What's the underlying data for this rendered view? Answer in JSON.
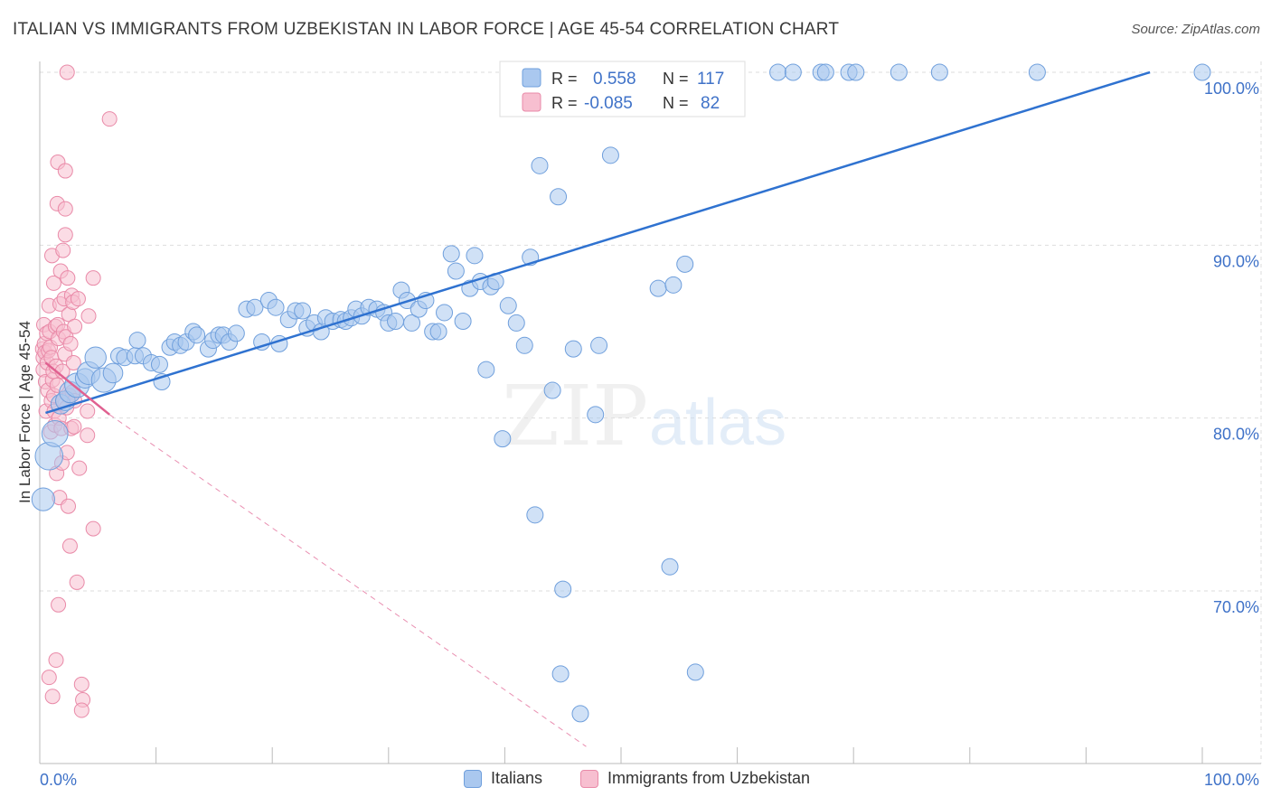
{
  "header": {
    "title": "ITALIAN VS IMMIGRANTS FROM UZBEKISTAN IN LABOR FORCE | AGE 45-54 CORRELATION CHART",
    "source": "Source: ZipAtlas.com"
  },
  "watermark": {
    "part1": "ZIP",
    "part2": "atlas"
  },
  "colors": {
    "italians_fill": "#aac8ef",
    "italians_stroke": "#6f9fdc",
    "italians_line": "#2f72d0",
    "uzbek_fill": "#f7bfd0",
    "uzbek_stroke": "#e98aa8",
    "uzbek_line": "#e06090",
    "value_text": "#3f72c8",
    "grid": "#dddddd"
  },
  "legend": {
    "italians": {
      "r_label": "R =",
      "r_value": "0.558",
      "n_label": "N =",
      "n_value": "117"
    },
    "uzbek": {
      "r_label": "R =",
      "r_value": "-0.085",
      "n_label": "N =",
      "n_value": "82"
    }
  },
  "bottom_legend": {
    "italians": "Italians",
    "uzbek": "Immigrants from Uzbekistan"
  },
  "chart_data": {
    "type": "scatter",
    "title": "ITALIAN VS IMMIGRANTS FROM UZBEKISTAN IN LABOR FORCE | AGE 45-54 CORRELATION CHART",
    "xlabel": "",
    "ylabel": "In Labor Force | Age 45-54",
    "x_ticks": [
      "0.0%",
      "100.0%"
    ],
    "y_ticks": [
      {
        "value": 70,
        "label": "70.0%"
      },
      {
        "value": 80,
        "label": "80.0%"
      },
      {
        "value": 90,
        "label": "90.0%"
      },
      {
        "value": 100,
        "label": "100.0%"
      }
    ],
    "xlim": [
      0,
      100
    ],
    "ylim": [
      61.0,
      101.0
    ],
    "grid": true,
    "legend_position": "top-center",
    "series": [
      {
        "name": "Italians",
        "r": 0.558,
        "n": 117,
        "trend": [
          [
            0.5,
            80.3
          ],
          [
            95.5,
            100.0
          ]
        ],
        "points": [
          [
            0.3,
            75.3,
            1.4
          ],
          [
            0.8,
            77.8,
            1.7
          ],
          [
            1.3,
            79.1,
            1.6
          ],
          [
            1.8,
            80.8,
            1.2
          ],
          [
            2.2,
            81.0,
            1.2
          ],
          [
            2.6,
            81.5,
            1.3
          ],
          [
            3.2,
            81.9,
            1.5
          ],
          [
            3.9,
            82.3,
            1.2
          ],
          [
            4.2,
            82.6,
            1.4
          ],
          [
            4.8,
            83.5,
            1.3
          ],
          [
            5.5,
            82.2,
            1.5
          ],
          [
            6.3,
            82.6,
            1.2
          ],
          [
            6.8,
            83.6,
            1.0
          ],
          [
            7.3,
            83.5,
            1.0
          ],
          [
            8.2,
            83.6,
            1.0
          ],
          [
            8.4,
            84.5,
            1.0
          ],
          [
            8.9,
            83.6,
            1.0
          ],
          [
            9.6,
            83.2,
            1.0
          ],
          [
            10.3,
            83.1,
            1.0
          ],
          [
            10.5,
            82.1,
            1.0
          ],
          [
            11.2,
            84.1,
            1.0
          ],
          [
            11.6,
            84.4,
            1.0
          ],
          [
            12.1,
            84.2,
            1.0
          ],
          [
            12.6,
            84.4,
            1.0
          ],
          [
            13.2,
            85.0,
            1.0
          ],
          [
            13.5,
            84.8,
            1.0
          ],
          [
            14.5,
            84.0,
            1.0
          ],
          [
            14.9,
            84.5,
            1.0
          ],
          [
            15.4,
            84.8,
            1.0
          ],
          [
            15.8,
            84.8,
            1.0
          ],
          [
            16.3,
            84.4,
            1.0
          ],
          [
            16.9,
            84.9,
            1.0
          ],
          [
            17.8,
            86.3,
            1.0
          ],
          [
            18.5,
            86.4,
            1.0
          ],
          [
            19.1,
            84.4,
            1.0
          ],
          [
            19.7,
            86.8,
            1.0
          ],
          [
            20.3,
            86.4,
            1.0
          ],
          [
            20.6,
            84.3,
            1.0
          ],
          [
            21.4,
            85.7,
            1.0
          ],
          [
            22.0,
            86.2,
            1.0
          ],
          [
            22.6,
            86.2,
            1.0
          ],
          [
            23.0,
            85.2,
            1.0
          ],
          [
            23.6,
            85.5,
            1.0
          ],
          [
            24.2,
            85.0,
            1.0
          ],
          [
            24.6,
            85.8,
            1.0
          ],
          [
            25.2,
            85.6,
            1.0
          ],
          [
            25.9,
            85.7,
            1.0
          ],
          [
            26.3,
            85.6,
            1.0
          ],
          [
            26.8,
            85.8,
            1.0
          ],
          [
            27.2,
            86.3,
            1.0
          ],
          [
            27.7,
            85.9,
            1.0
          ],
          [
            28.3,
            86.4,
            1.0
          ],
          [
            29.0,
            86.3,
            1.0
          ],
          [
            29.6,
            86.1,
            1.0
          ],
          [
            30.0,
            85.5,
            1.0
          ],
          [
            30.6,
            85.6,
            1.0
          ],
          [
            31.1,
            87.4,
            1.0
          ],
          [
            31.6,
            86.8,
            1.0
          ],
          [
            32.0,
            85.5,
            1.0
          ],
          [
            32.6,
            86.3,
            1.0
          ],
          [
            33.2,
            86.8,
            1.0
          ],
          [
            33.8,
            85.0,
            1.0
          ],
          [
            34.3,
            85.0,
            1.0
          ],
          [
            34.8,
            86.1,
            1.0
          ],
          [
            35.4,
            89.5,
            1.0
          ],
          [
            35.8,
            88.5,
            1.0
          ],
          [
            36.4,
            85.6,
            1.0
          ],
          [
            37.0,
            87.5,
            1.0
          ],
          [
            37.4,
            89.4,
            1.0
          ],
          [
            37.9,
            87.9,
            1.0
          ],
          [
            38.4,
            82.8,
            1.0
          ],
          [
            38.8,
            87.6,
            1.0
          ],
          [
            39.2,
            87.9,
            1.0
          ],
          [
            39.8,
            78.8,
            1.0
          ],
          [
            40.3,
            86.5,
            1.0
          ],
          [
            41.0,
            85.5,
            1.0
          ],
          [
            41.7,
            84.2,
            1.0
          ],
          [
            42.2,
            89.3,
            1.0
          ],
          [
            42.6,
            74.4,
            1.0
          ],
          [
            43.0,
            94.6,
            1.0
          ],
          [
            44.1,
            81.6,
            1.0
          ],
          [
            44.6,
            92.8,
            1.0
          ],
          [
            45.0,
            70.1,
            1.0
          ],
          [
            44.8,
            65.2,
            1.0
          ],
          [
            45.9,
            84.0,
            1.0
          ],
          [
            46.5,
            62.9,
            1.0
          ],
          [
            46.9,
            100.0,
            1.0
          ],
          [
            47.8,
            80.2,
            1.0
          ],
          [
            48.1,
            84.2,
            1.0
          ],
          [
            49.1,
            95.2,
            1.0
          ],
          [
            50.1,
            100.0,
            1.0
          ],
          [
            51.8,
            100.0,
            1.0
          ],
          [
            53.2,
            87.5,
            1.0
          ],
          [
            54.2,
            71.4,
            1.0
          ],
          [
            54.5,
            87.7,
            1.0
          ],
          [
            55.5,
            88.9,
            1.0
          ],
          [
            55.6,
            100.0,
            1.0
          ],
          [
            56.4,
            65.3,
            1.0
          ],
          [
            56.8,
            100.0,
            1.0
          ],
          [
            57.4,
            100.0,
            1.0
          ],
          [
            58.3,
            100.0,
            1.0
          ],
          [
            63.5,
            100.0,
            1.0
          ],
          [
            64.8,
            100.0,
            1.0
          ],
          [
            67.2,
            100.0,
            1.0
          ],
          [
            67.6,
            100.0,
            1.0
          ],
          [
            69.6,
            100.0,
            1.0
          ],
          [
            70.2,
            100.0,
            1.0
          ],
          [
            73.9,
            100.0,
            1.0
          ],
          [
            77.4,
            100.0,
            1.0
          ],
          [
            85.8,
            100.0,
            1.0
          ],
          [
            100.0,
            100.0,
            1.0
          ]
        ]
      },
      {
        "name": "Immigrants from Uzbekistan",
        "r": -0.085,
        "n": 82,
        "trend": [
          [
            0.5,
            83.2
          ],
          [
            6.0,
            80.2
          ]
        ],
        "trend_ext": [
          [
            6.0,
            80.2
          ],
          [
            47.0,
            61.0
          ]
        ],
        "points": [
          [
            0.25,
            84.0
          ],
          [
            0.3,
            83.5
          ],
          [
            0.3,
            82.8
          ],
          [
            0.35,
            85.4
          ],
          [
            0.4,
            84.3
          ],
          [
            0.45,
            83.8
          ],
          [
            0.5,
            82.1
          ],
          [
            0.55,
            80.4
          ],
          [
            0.6,
            84.9
          ],
          [
            0.65,
            83.2
          ],
          [
            0.7,
            81.6
          ],
          [
            0.75,
            83.9
          ],
          [
            0.8,
            86.5
          ],
          [
            0.85,
            85.0
          ],
          [
            0.9,
            84.1
          ],
          [
            0.95,
            79.2
          ],
          [
            1.0,
            81.0
          ],
          [
            1.0,
            83.5
          ],
          [
            1.05,
            89.4
          ],
          [
            1.1,
            82.2
          ],
          [
            1.15,
            82.7
          ],
          [
            1.2,
            81.3
          ],
          [
            1.2,
            87.8
          ],
          [
            1.25,
            80.4
          ],
          [
            1.3,
            79.6
          ],
          [
            1.35,
            85.3
          ],
          [
            1.4,
            83.0
          ],
          [
            1.45,
            76.8
          ],
          [
            1.5,
            81.9
          ],
          [
            1.5,
            92.4
          ],
          [
            1.55,
            85.4
          ],
          [
            1.6,
            84.6
          ],
          [
            1.65,
            80.0
          ],
          [
            1.7,
            75.4
          ],
          [
            1.75,
            86.6
          ],
          [
            1.8,
            88.5
          ],
          [
            1.85,
            79.4
          ],
          [
            1.9,
            77.4
          ],
          [
            1.95,
            82.7
          ],
          [
            2.0,
            89.7
          ],
          [
            2.0,
            81.0
          ],
          [
            2.05,
            85.0
          ],
          [
            2.1,
            86.9
          ],
          [
            2.15,
            83.7
          ],
          [
            2.2,
            90.6
          ],
          [
            2.25,
            84.7
          ],
          [
            2.3,
            80.6
          ],
          [
            2.35,
            78.0
          ],
          [
            2.4,
            88.1
          ],
          [
            2.45,
            74.9
          ],
          [
            2.5,
            86.0
          ],
          [
            2.55,
            81.3
          ],
          [
            2.6,
            72.6
          ],
          [
            2.65,
            84.3
          ],
          [
            2.7,
            79.4
          ],
          [
            2.75,
            87.1
          ],
          [
            2.8,
            81.5
          ],
          [
            2.85,
            86.7
          ],
          [
            2.9,
            83.2
          ],
          [
            2.95,
            79.5
          ],
          [
            3.0,
            85.3
          ],
          [
            3.0,
            81.0
          ],
          [
            1.55,
            94.8
          ],
          [
            2.2,
            94.3
          ],
          [
            2.2,
            92.1
          ],
          [
            2.35,
            100.0
          ],
          [
            1.4,
            66.0
          ],
          [
            1.6,
            69.2
          ],
          [
            0.8,
            65.0
          ],
          [
            1.1,
            63.9
          ],
          [
            3.2,
            70.5
          ],
          [
            3.4,
            77.1
          ],
          [
            3.3,
            86.9
          ],
          [
            3.6,
            64.6
          ],
          [
            3.7,
            63.7
          ],
          [
            3.6,
            63.1
          ],
          [
            4.1,
            79.0
          ],
          [
            4.1,
            80.4
          ],
          [
            4.2,
            85.9
          ],
          [
            4.6,
            73.6
          ],
          [
            4.6,
            88.1
          ],
          [
            6.0,
            97.3
          ]
        ]
      }
    ]
  }
}
